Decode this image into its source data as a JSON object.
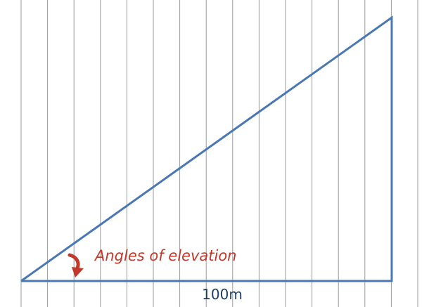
{
  "diagram": {
    "annotation": "Angles of elevation",
    "base_label": "100m",
    "colors": {
      "triangle": "#4a78b5",
      "annotation": "#c0392b",
      "arrow": "#c0392b",
      "grid": "#9a9a9a",
      "base_label": "#1f3f66"
    },
    "icons": {
      "angle_marker": "curved-arrow-icon"
    }
  }
}
